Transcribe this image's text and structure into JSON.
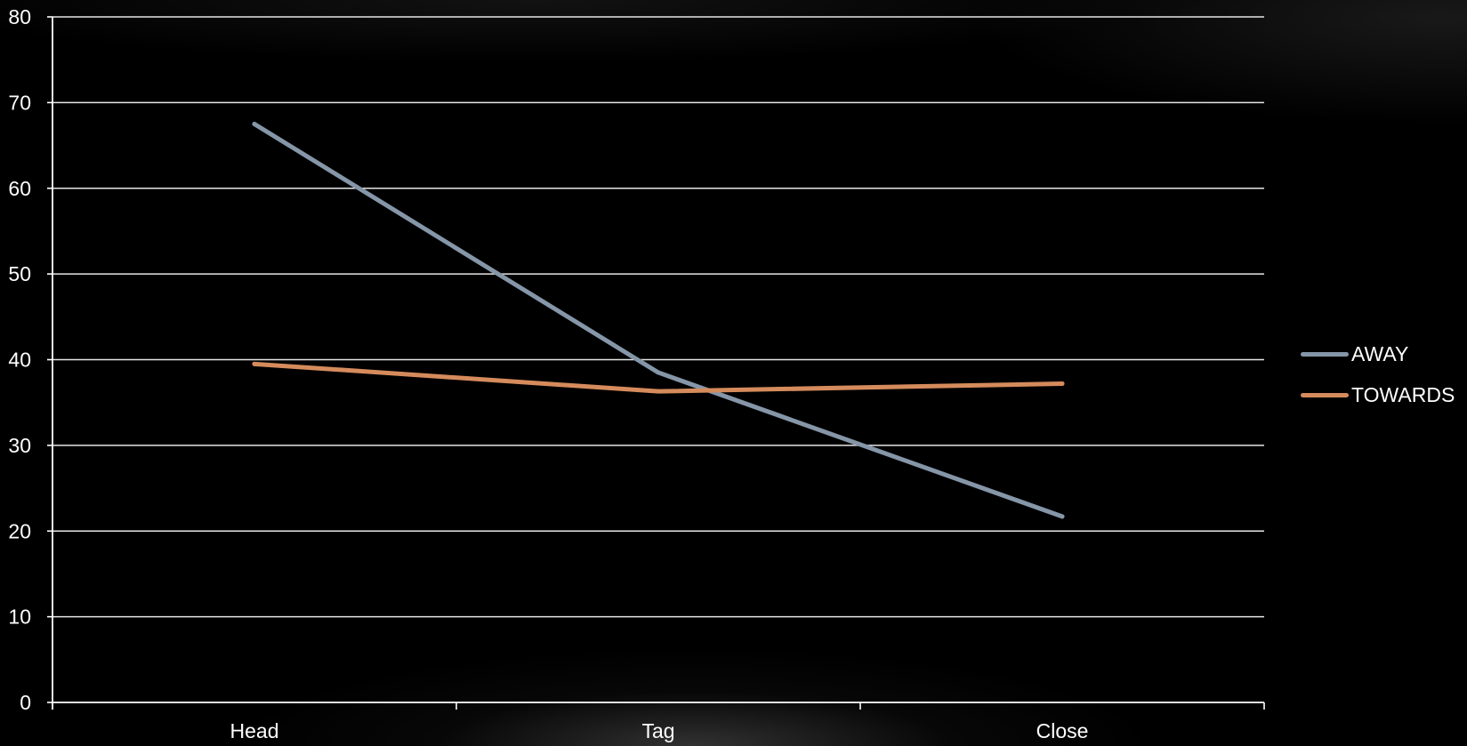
{
  "chart_data": {
    "type": "line",
    "title": "",
    "xlabel": "",
    "ylabel": "",
    "categories": [
      "Head",
      "Tag",
      "Close"
    ],
    "ylim": [
      0,
      80
    ],
    "yticks": [
      0,
      10,
      20,
      30,
      40,
      50,
      60,
      70,
      80
    ],
    "grid": true,
    "legend_position": "right",
    "series": [
      {
        "name": "AWAY",
        "values": [
          67.5,
          38.5,
          21.7
        ],
        "color": "#8596a8"
      },
      {
        "name": "TOWARDS",
        "values": [
          39.5,
          36.3,
          37.2
        ],
        "color": "#d58b5c"
      }
    ],
    "axis_color": "#ffffff",
    "text_color": "#ffffff"
  }
}
